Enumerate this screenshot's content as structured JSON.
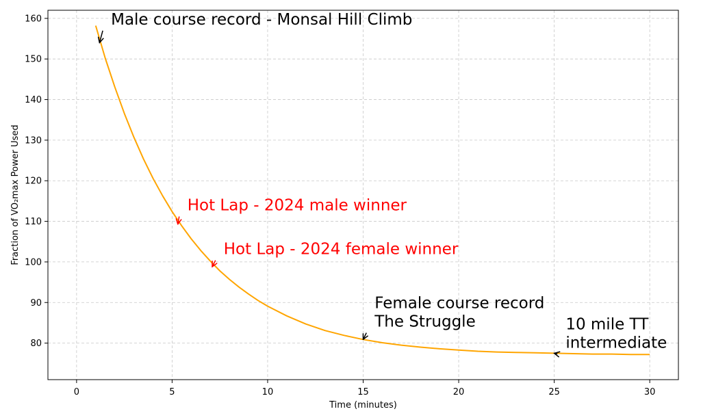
{
  "chart_data": {
    "type": "line",
    "title": "",
    "xlabel": "Time (minutes)",
    "ylabel": "Fraction of VO₂max Power Used",
    "xlim": [
      -1.5,
      31.5
    ],
    "ylim": [
      71,
      162
    ],
    "xticks": [
      0,
      5,
      10,
      15,
      20,
      25,
      30
    ],
    "yticks": [
      80,
      90,
      100,
      110,
      120,
      130,
      140,
      150,
      160
    ],
    "grid": true,
    "series": [
      {
        "color": "#ffa500",
        "x": [
          1,
          1.5,
          2,
          2.5,
          3,
          3.5,
          4,
          4.5,
          5,
          5.5,
          6,
          6.5,
          7,
          7.5,
          8,
          8.5,
          9,
          9.5,
          10,
          11,
          12,
          13,
          14,
          15,
          16,
          17,
          18,
          19,
          20,
          21,
          22,
          23,
          24,
          25,
          26,
          27,
          28,
          29,
          30
        ],
        "y": [
          158.2,
          150.2,
          143.1,
          136.6,
          130.7,
          125.4,
          120.6,
          116.3,
          112.4,
          108.9,
          105.7,
          102.8,
          100.2,
          97.8,
          95.7,
          93.8,
          92.1,
          90.5,
          89.1,
          86.7,
          84.7,
          83.1,
          81.9,
          80.9,
          80.1,
          79.5,
          79.0,
          78.6,
          78.3,
          78.0,
          77.8,
          77.7,
          77.6,
          77.5,
          77.4,
          77.3,
          77.3,
          77.2,
          77.2
        ]
      }
    ],
    "annotations": [
      {
        "lines": [
          "Male course record - Monsal Hill Climb"
        ],
        "text_x": 1.8,
        "text_y": 158.5,
        "point": [
          1.2,
          154
        ],
        "color": "#000000"
      },
      {
        "lines": [
          "Hot Lap - 2024 male winner"
        ],
        "text_x": 5.8,
        "text_y": 112.7,
        "point": [
          5.3,
          109.3
        ],
        "color": "#ff0000"
      },
      {
        "lines": [
          "Hot Lap - 2024 female winner"
        ],
        "text_x": 7.7,
        "text_y": 101.9,
        "point": [
          7.1,
          98.8
        ],
        "color": "#ff0000"
      },
      {
        "lines": [
          "Female course record",
          " The Struggle"
        ],
        "text_x": 15.6,
        "text_y": 88.6,
        "point": [
          15,
          80.9
        ],
        "color": "#000000"
      },
      {
        "lines": [
          "10 mile TT",
          " intermediate"
        ],
        "text_x": 25.6,
        "text_y": 83.4,
        "point": [
          25,
          77.5
        ],
        "color": "#000000"
      }
    ]
  }
}
